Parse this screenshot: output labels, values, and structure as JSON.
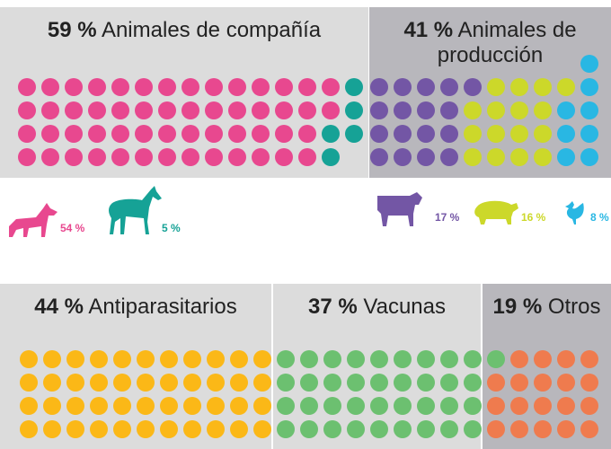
{
  "chart_data": [
    {
      "type": "waffle",
      "groups": [
        {
          "value": 59,
          "value_label": "59 %",
          "name": "Animales de compañía",
          "series": [
            {
              "value": 54,
              "value_label": "54 %",
              "color": "#e8488f"
            },
            {
              "value": 5,
              "value_label": "5 %",
              "color": "#16a296"
            }
          ]
        },
        {
          "value": 41,
          "value_label": "41 %",
          "name": "Animales de producción",
          "series": [
            {
              "value": 17,
              "value_label": "17 %",
              "color": "#7356a5"
            },
            {
              "value": 16,
              "value_label": "16 %",
              "color": "#ccd82a"
            },
            {
              "value": 8,
              "value_label": "8 %",
              "color": "#29b7e3"
            }
          ]
        }
      ]
    },
    {
      "type": "waffle",
      "groups": [
        {
          "value": 44,
          "value_label": "44 %",
          "name": "Antiparasitarios",
          "color": "#fbb817"
        },
        {
          "value": 37,
          "value_label": "37 %",
          "name": "Vacunas",
          "color": "#6cc070"
        },
        {
          "value": 19,
          "value_label": "19 %",
          "name": "Otros",
          "color": "#ef7b4e"
        }
      ]
    }
  ]
}
